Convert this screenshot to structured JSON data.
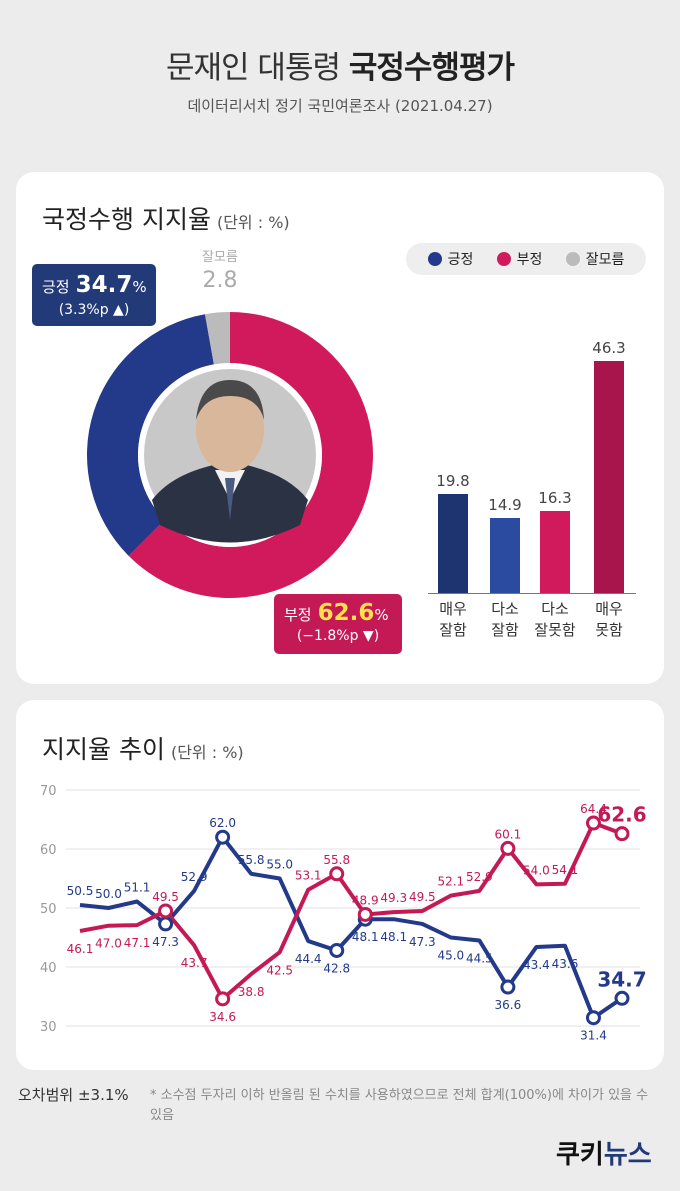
{
  "header": {
    "title_light": "문재인 대통령",
    "title_bold": "국정수행평가",
    "subtitle": "데이터리서치 정기 국민여론조사 (2021.04.27)"
  },
  "donut_card": {
    "title": "국정수행 지지율",
    "unit": "(단위 : %)",
    "legend": [
      {
        "label": "긍정",
        "color": "#233a8a"
      },
      {
        "label": "부정",
        "color": "#d11a5c"
      },
      {
        "label": "잘모름",
        "color": "#bbbbbb"
      }
    ],
    "positive": {
      "label": "긍정",
      "value": "34.7",
      "pct": "%",
      "change": "(3.3%p ▲)"
    },
    "negative": {
      "label": "부정",
      "value": "62.6",
      "pct": "%",
      "change": "(−1.8%p ▼)"
    },
    "unknown": {
      "label": "잘모름",
      "value": "2.8"
    }
  },
  "trend_card": {
    "title": "지지율 추이",
    "unit": "(단위 : %)"
  },
  "footer": {
    "margin_of_error": "오차범위 ±3.1%",
    "note": "* 소수점 두자리 이하 반올림 된 수치를 사용하였으므로 전체 합계(100%)에 차이가 있을 수 있음",
    "logo_a": "쿠키",
    "logo_b": "뉴스"
  },
  "chart_data": [
    {
      "type": "pie",
      "title": "국정수행 지지율",
      "categories": [
        "긍정",
        "부정",
        "잘모름"
      ],
      "values": [
        34.7,
        62.6,
        2.8
      ],
      "colors": [
        "#233a8a",
        "#d11a5c",
        "#bbbbbb"
      ]
    },
    {
      "type": "bar",
      "categories": [
        "매우\n잘함",
        "다소\n잘함",
        "다소\n잘못함",
        "매우\n못함"
      ],
      "values": [
        19.8,
        14.9,
        16.3,
        46.3
      ],
      "colors": [
        "#1d3470",
        "#2a4ba0",
        "#d11a5c",
        "#a8144c"
      ]
    },
    {
      "type": "line",
      "title": "지지율 추이",
      "ylim": [
        30,
        70
      ],
      "yticks": [
        30,
        40,
        50,
        60,
        70
      ],
      "grid": true,
      "series": [
        {
          "name": "긍정",
          "color": "#233a8a",
          "values": [
            50.5,
            50.0,
            51.1,
            47.3,
            52.9,
            62.0,
            55.8,
            55.0,
            44.4,
            42.8,
            48.1,
            48.1,
            47.3,
            45.0,
            44.5,
            36.6,
            43.4,
            43.6,
            31.4,
            34.7
          ]
        },
        {
          "name": "부정",
          "color": "#c31a55",
          "values": [
            46.1,
            47.0,
            47.1,
            49.5,
            43.7,
            34.6,
            38.8,
            42.5,
            53.1,
            55.8,
            48.9,
            49.3,
            49.5,
            52.1,
            52.9,
            60.1,
            54.0,
            54.1,
            64.4,
            62.6
          ]
        }
      ]
    }
  ]
}
